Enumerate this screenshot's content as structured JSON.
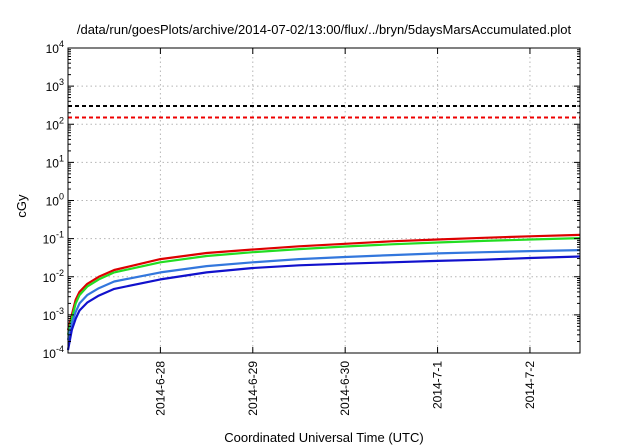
{
  "chart_data": {
    "type": "line",
    "title": "/data/run/goesPlots/archive/2014-07-02/13:00/flux/../bryn/5daysMarsAccumulated.plot",
    "xlabel": "Coordinated Universal Time (UTC)",
    "ylabel": "cGy",
    "y_scale": "log",
    "ylim": [
      0.0001,
      10000
    ],
    "y_ticks": [
      {
        "value": 0.0001,
        "base": "10",
        "exp": "-4"
      },
      {
        "value": 0.001,
        "base": "10",
        "exp": "-3"
      },
      {
        "value": 0.01,
        "base": "10",
        "exp": "-2"
      },
      {
        "value": 0.1,
        "base": "10",
        "exp": "-1"
      },
      {
        "value": 1,
        "base": "10",
        "exp": "0"
      },
      {
        "value": 10,
        "base": "10",
        "exp": "1"
      },
      {
        "value": 100,
        "base": "10",
        "exp": "2"
      },
      {
        "value": 1000,
        "base": "10",
        "exp": "3"
      },
      {
        "value": 10000,
        "base": "10",
        "exp": "4"
      }
    ],
    "xlim": [
      "2014-06-27 00:00",
      "2014-07-02 13:00"
    ],
    "x_ticks": [
      {
        "value": "2014-06-28 00:00",
        "label": "2014-6-28"
      },
      {
        "value": "2014-06-29 00:00",
        "label": "2014-6-29"
      },
      {
        "value": "2014-06-30 00:00",
        "label": "2014-6-30"
      },
      {
        "value": "2014-07-01 00:00",
        "label": "2014-7-1"
      },
      {
        "value": "2014-07-02 00:00",
        "label": "2014-7-2"
      }
    ],
    "grid": true,
    "reference_lines": [
      {
        "y": 300,
        "color": "#000000",
        "style": "dashed"
      },
      {
        "y": 150,
        "color": "#ee0000",
        "style": "dashed"
      }
    ],
    "series": [
      {
        "color": "#dd0000",
        "x": [
          "2014-06-27 00:00",
          "2014-06-27 01:00",
          "2014-06-27 02:00",
          "2014-06-27 03:00",
          "2014-06-27 05:00",
          "2014-06-27 08:00",
          "2014-06-27 12:00",
          "2014-06-28 00:00",
          "2014-06-28 12:00",
          "2014-06-29 00:00",
          "2014-06-29 12:00",
          "2014-06-30 00:00",
          "2014-06-30 12:00",
          "2014-07-01 00:00",
          "2014-07-01 12:00",
          "2014-07-02 00:00",
          "2014-07-02 13:00"
        ],
        "y": [
          0.0004,
          0.001,
          0.0025,
          0.004,
          0.0065,
          0.01,
          0.015,
          0.029,
          0.042,
          0.052,
          0.063,
          0.073,
          0.085,
          0.095,
          0.105,
          0.115,
          0.125
        ]
      },
      {
        "color": "#22dd22",
        "x": [
          "2014-06-27 00:00",
          "2014-06-27 01:00",
          "2014-06-27 02:00",
          "2014-06-27 03:00",
          "2014-06-27 05:00",
          "2014-06-27 08:00",
          "2014-06-27 12:00",
          "2014-06-28 00:00",
          "2014-06-28 12:00",
          "2014-06-29 00:00",
          "2014-06-29 12:00",
          "2014-06-30 00:00",
          "2014-06-30 12:00",
          "2014-07-01 00:00",
          "2014-07-01 12:00",
          "2014-07-02 00:00",
          "2014-07-02 13:00"
        ],
        "y": [
          0.0003,
          0.0008,
          0.002,
          0.0033,
          0.0055,
          0.0085,
          0.013,
          0.024,
          0.035,
          0.044,
          0.053,
          0.062,
          0.071,
          0.079,
          0.087,
          0.095,
          0.103
        ]
      },
      {
        "color": "#3377dd",
        "x": [
          "2014-06-27 00:00",
          "2014-06-27 01:00",
          "2014-06-27 02:00",
          "2014-06-27 03:00",
          "2014-06-27 05:00",
          "2014-06-27 08:00",
          "2014-06-27 12:00",
          "2014-06-28 00:00",
          "2014-06-28 12:00",
          "2014-06-29 00:00",
          "2014-06-29 12:00",
          "2014-06-30 00:00",
          "2014-06-30 12:00",
          "2014-07-01 00:00",
          "2014-07-01 12:00",
          "2014-07-02 00:00",
          "2014-07-02 13:00"
        ],
        "y": [
          0.00022,
          0.0006,
          0.0012,
          0.002,
          0.0033,
          0.005,
          0.0075,
          0.013,
          0.019,
          0.024,
          0.029,
          0.033,
          0.037,
          0.041,
          0.044,
          0.047,
          0.05
        ]
      },
      {
        "color": "#1111cc",
        "x": [
          "2014-06-27 00:00",
          "2014-06-27 01:00",
          "2014-06-27 02:00",
          "2014-06-27 03:00",
          "2014-06-27 05:00",
          "2014-06-27 08:00",
          "2014-06-27 12:00",
          "2014-06-28 00:00",
          "2014-06-28 12:00",
          "2014-06-29 00:00",
          "2014-06-29 12:00",
          "2014-06-30 00:00",
          "2014-06-30 12:00",
          "2014-07-01 00:00",
          "2014-07-01 12:00",
          "2014-07-02 00:00",
          "2014-07-02 13:00"
        ],
        "y": [
          0.00012,
          0.0004,
          0.0008,
          0.0013,
          0.0021,
          0.0032,
          0.0048,
          0.0085,
          0.013,
          0.017,
          0.02,
          0.022,
          0.024,
          0.026,
          0.028,
          0.031,
          0.034
        ]
      }
    ]
  }
}
